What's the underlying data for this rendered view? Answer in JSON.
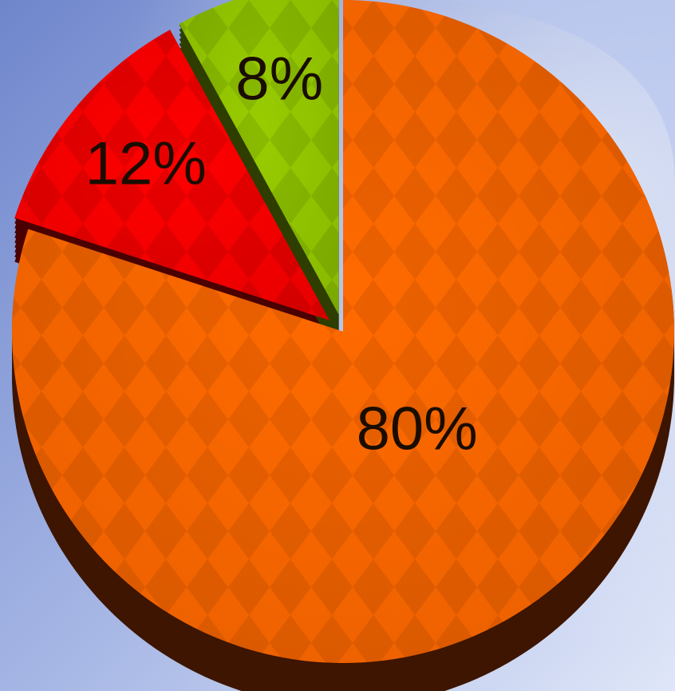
{
  "chart_data": {
    "type": "pie",
    "title": "",
    "style": "3d-exploded",
    "start_angle_deg": 0,
    "direction": "clockwise",
    "slices": [
      {
        "label": "80%",
        "value": 80,
        "color": "#ff6a00",
        "shade": "#c85000",
        "side": "#3d1500",
        "exploded": false
      },
      {
        "label": "12%",
        "value": 12,
        "color": "#ff0000",
        "shade": "#c00000",
        "side": "#4a0000",
        "exploded": true
      },
      {
        "label": "8%",
        "value": 8,
        "color": "#99cc00",
        "shade": "#6f9b00",
        "side": "#2e3d00",
        "exploded": true
      }
    ]
  },
  "colors": {
    "background_top": "#7f97d6",
    "background_bottom": "#d7e0f6",
    "accent_panel": "#c8d4f2"
  }
}
